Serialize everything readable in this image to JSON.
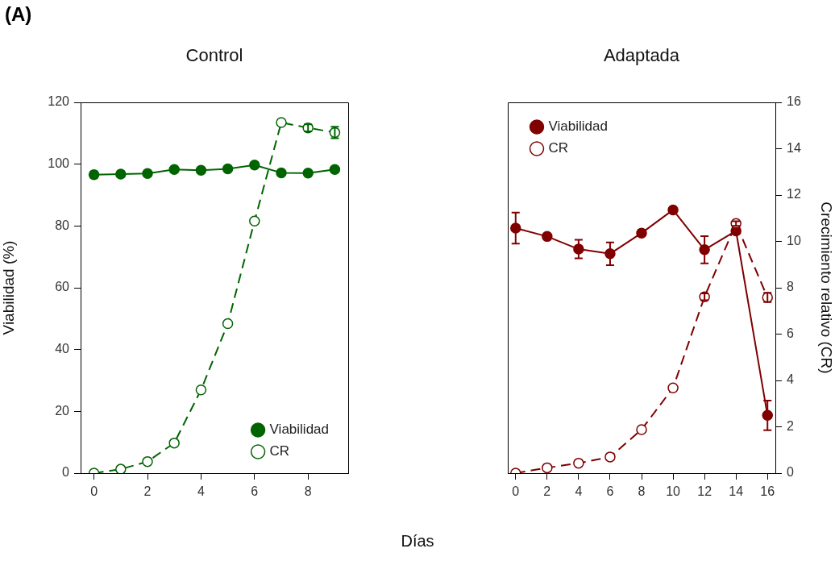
{
  "chart_data": [
    {
      "type": "line",
      "title": "Control",
      "xlabel": "Días",
      "ylabel": "Viabilidad (%)",
      "annotations": [
        "(A)"
      ],
      "x": [
        0,
        1,
        2,
        3,
        4,
        5,
        6,
        7,
        8,
        9
      ],
      "xlim": [
        -0.5,
        9.5
      ],
      "xticks": [
        0,
        2,
        4,
        6,
        8
      ],
      "ylim": [
        0,
        120
      ],
      "yticks": [
        0,
        20,
        40,
        60,
        80,
        100,
        120
      ],
      "y2lim": [
        0,
        16
      ],
      "grid": false,
      "legend": "bottom right",
      "marker": "circle",
      "series": [
        {
          "name": "Viabilidad",
          "color": "#006400",
          "line_style": "solid",
          "values": [
            96.6,
            96.8,
            97.0,
            98.3,
            98.0,
            98.5,
            99.7,
            97.2,
            97.1,
            98.3
          ],
          "errors": [
            1,
            null,
            null,
            null,
            null,
            null,
            null,
            null,
            null,
            null
          ]
        },
        {
          "name": "CR",
          "color": "#006400",
          "line_style": "dashed",
          "axis": "y2",
          "values": [
            0,
            0.17,
            0.5,
            1.3,
            3.59,
            6.45,
            10.88,
            15.13,
            14.9,
            14.7
          ],
          "errors": [
            null,
            null,
            null,
            null,
            null,
            null,
            null,
            null,
            0.15,
            0.25
          ]
        }
      ]
    },
    {
      "type": "line",
      "title": "Adaptada",
      "y2label": "Crecimiento relativo (CR)",
      "x": [
        0,
        2,
        4,
        6,
        8,
        10,
        12,
        14,
        16
      ],
      "xlim": [
        -0.5,
        16.5
      ],
      "xticks": [
        0,
        2,
        4,
        6,
        8,
        10,
        12,
        14,
        16
      ],
      "ylim": [
        0,
        120
      ],
      "y2lim": [
        0,
        16
      ],
      "y2ticks": [
        0,
        2,
        4,
        6,
        8,
        10,
        12,
        14,
        16
      ],
      "grid": false,
      "legend": "top left",
      "marker": "circle",
      "series": [
        {
          "name": "Viabilidad",
          "color": "#800000",
          "line_style": "solid",
          "values": [
            79.3,
            76.6,
            72.5,
            71.0,
            77.7,
            85.2,
            72.3,
            78.4,
            18.7
          ],
          "errors": [
            5,
            0.8,
            3,
            3.7,
            1,
            null,
            4.4,
            1,
            4.8
          ]
        },
        {
          "name": "CR",
          "color": "#800000",
          "line_style": "dashed",
          "axis": "y2",
          "values": [
            0,
            0.23,
            0.43,
            0.7,
            1.88,
            3.68,
            7.61,
            10.77,
            7.58
          ],
          "errors": [
            null,
            null,
            null,
            null,
            null,
            null,
            0.15,
            0.1,
            0.2
          ]
        }
      ]
    }
  ]
}
